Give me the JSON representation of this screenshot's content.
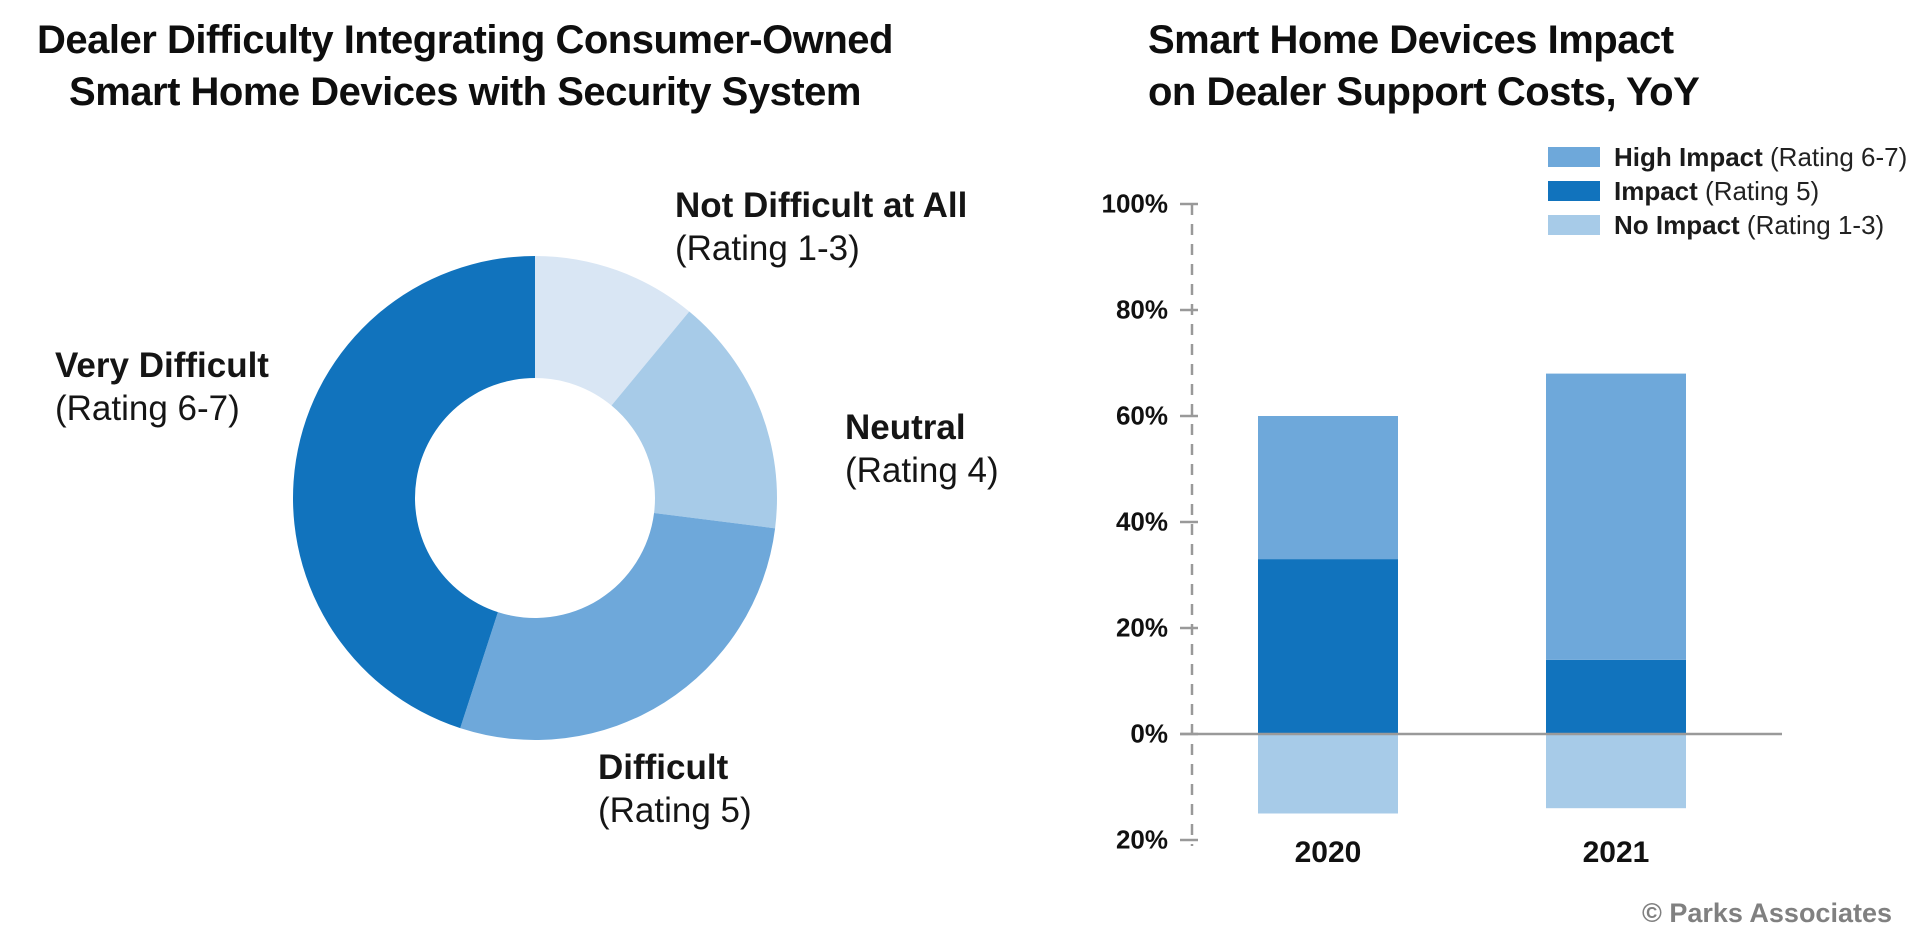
{
  "page": {
    "footer": "© Parks Associates"
  },
  "left_chart": {
    "title_lines": [
      "Dealer Difficulty Integrating Consumer-Owned",
      "Smart Home Devices with Security System"
    ],
    "labels": [
      {
        "bold": "Not Difficult at All",
        "sub": "(Rating 1-3)"
      },
      {
        "bold": "Neutral",
        "sub": "(Rating 4)"
      },
      {
        "bold": "Difficult",
        "sub": "(Rating 5)"
      },
      {
        "bold": "Very Difficult",
        "sub": "(Rating 6-7)"
      }
    ]
  },
  "right_chart": {
    "title_lines": [
      "Smart Home Devices Impact",
      "on Dealer Support Costs, YoY"
    ],
    "legend": [
      {
        "bold": "High Impact",
        "rest": " (Rating 6-7)"
      },
      {
        "bold": "Impact",
        "rest": " (Rating 5)"
      },
      {
        "bold": "No Impact",
        "rest": " (Rating 1-3)"
      }
    ],
    "x_categories": [
      "2020",
      "2021"
    ]
  },
  "chart_data": [
    {
      "type": "pie",
      "subtype": "donut",
      "title": "Dealer Difficulty Integrating Consumer-Owned Smart Home Devices with Security System",
      "unit": "%",
      "start_angle_deg": 0,
      "direction": "clockwise",
      "slices": [
        {
          "label": "Not Difficult at All (Rating 1-3)",
          "value": 11,
          "color": "#D9E6F4"
        },
        {
          "label": "Neutral (Rating 4)",
          "value": 16,
          "color": "#A7CBE8"
        },
        {
          "label": "Difficult (Rating 5)",
          "value": 28,
          "color": "#6EA8DA"
        },
        {
          "label": "Very Difficult (Rating 6-7)",
          "value": 45,
          "color": "#1173BD"
        }
      ]
    },
    {
      "type": "bar",
      "subtype": "stacked",
      "title": "Smart Home Devices Impact on Dealer Support Costs, YoY",
      "categories": [
        "2020",
        "2021"
      ],
      "series": [
        {
          "name": "High Impact (Rating 6-7)",
          "values": [
            27,
            54
          ],
          "color": "#6EA8DA",
          "stack": "above"
        },
        {
          "name": "Impact (Rating 5)",
          "values": [
            33,
            14
          ],
          "color": "#1173BD",
          "stack": "above"
        },
        {
          "name": "No Impact (Rating 1-3)",
          "values": [
            15,
            14
          ],
          "color": "#A7CBE8",
          "stack": "below"
        }
      ],
      "unit": "%",
      "ylim_top": 100,
      "ylim_bottom": -20,
      "grid": false,
      "legend_position": "top-right",
      "y_ticks": [
        {
          "value": 100,
          "label": "100%"
        },
        {
          "value": 80,
          "label": "80%"
        },
        {
          "value": 60,
          "label": "60%"
        },
        {
          "value": 40,
          "label": "40%"
        },
        {
          "value": 20,
          "label": "20%"
        },
        {
          "value": 0,
          "label": "0%"
        },
        {
          "value": -20,
          "label": "20%"
        }
      ]
    }
  ],
  "style": {
    "axis_dash_color": "#999999",
    "zero_line_color": "#9a9a9a",
    "text_color": "#111111"
  }
}
